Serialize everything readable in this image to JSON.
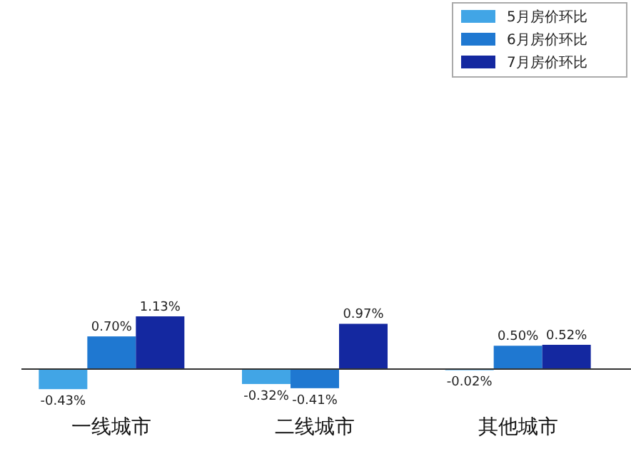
{
  "chart_data": {
    "type": "bar",
    "categories": [
      "一线城市",
      "二线城市",
      "其他城市"
    ],
    "series": [
      {
        "name": "5月房价环比",
        "color": "#41a5e6",
        "values": [
          -0.43,
          -0.32,
          -0.02
        ],
        "value_labels": [
          "-0.43%",
          "-0.32%",
          "-0.02%"
        ]
      },
      {
        "name": "6月房价环比",
        "color": "#1f78d1",
        "values": [
          0.7,
          -0.41,
          0.5
        ],
        "value_labels": [
          "0.70%",
          "-0.41%",
          "0.50%"
        ]
      },
      {
        "name": "7月房价环比",
        "color": "#1428a0",
        "values": [
          1.13,
          0.97,
          0.52
        ],
        "value_labels": [
          "1.13%",
          "0.97%",
          "0.52%"
        ]
      }
    ],
    "legend": "top right",
    "grid": false
  }
}
